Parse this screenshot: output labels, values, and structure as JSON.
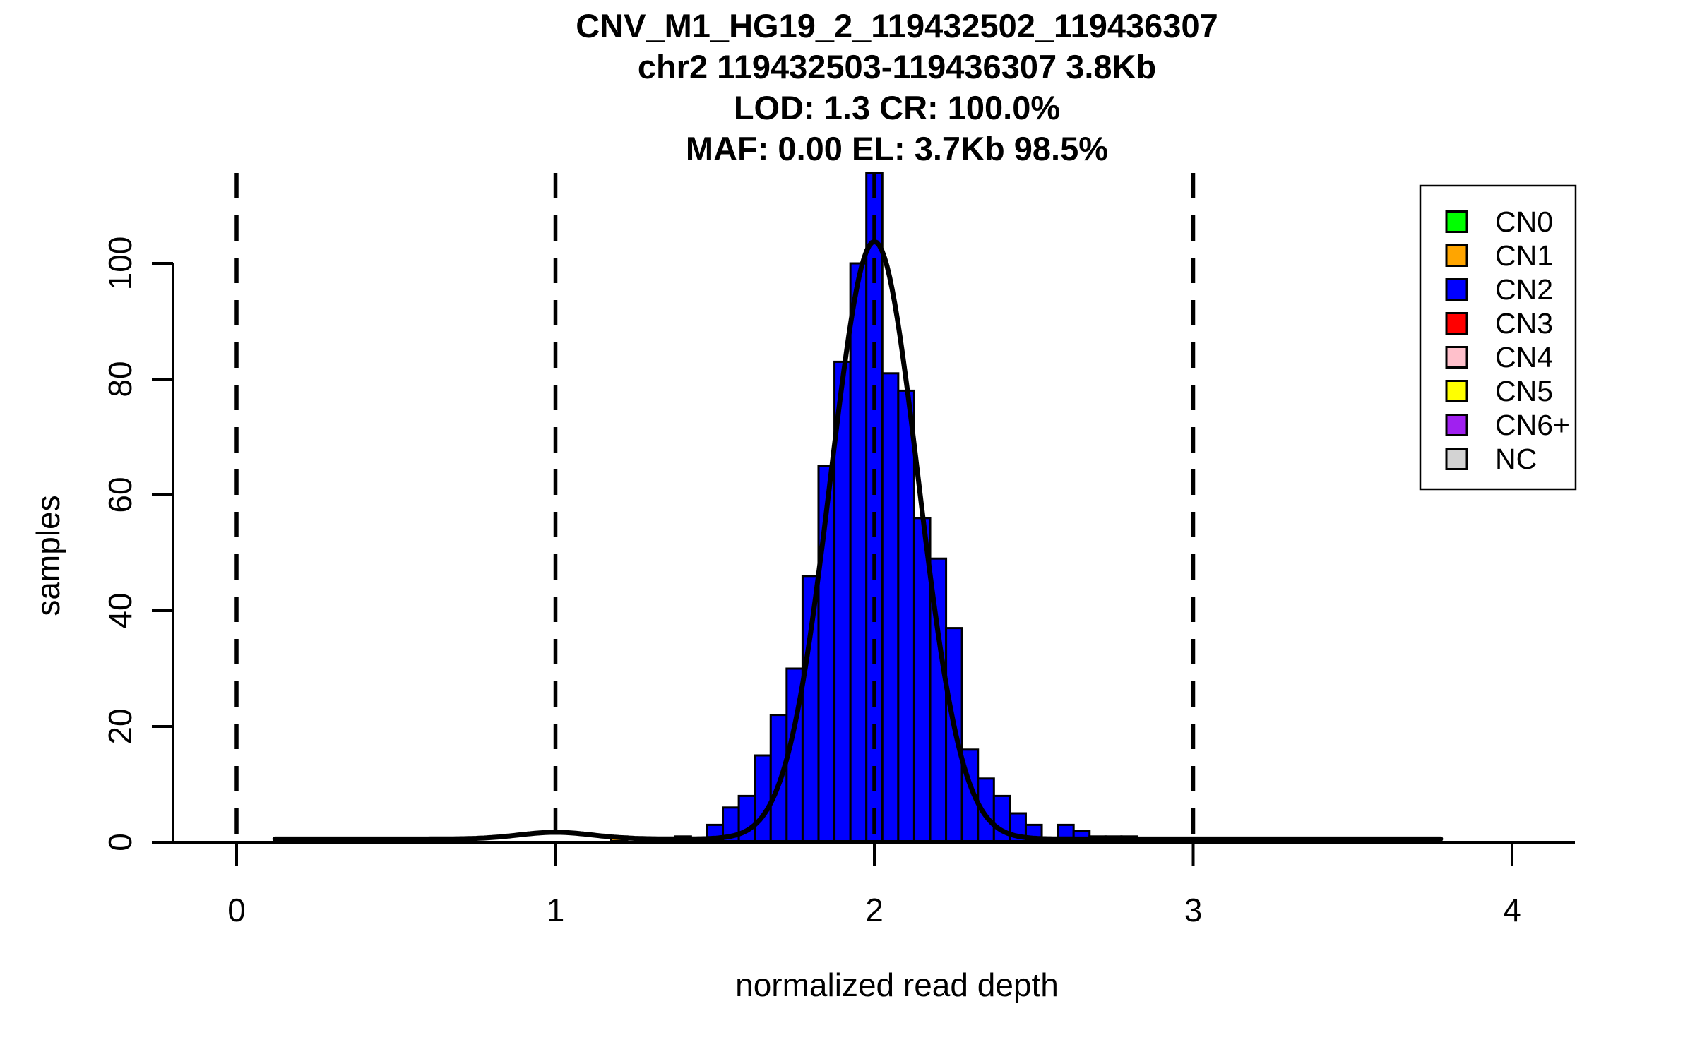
{
  "title": {
    "line1": "CNV_M1_HG19_2_119432502_119436307",
    "line2": "chr2 119432503-119436307 3.8Kb",
    "line3": "LOD: 1.3 CR: 100.0%",
    "line4": "MAF: 0.00 EL: 3.7Kb 98.5%"
  },
  "chart_data": {
    "type": "bar",
    "subtype": "histogram-with-density-fit",
    "title": "CNV_M1_HG19_2_119432502_119436307",
    "subtitle_lines": [
      "chr2 119432503-119436307 3.8Kb",
      "LOD: 1.3 CR: 100.0%",
      "MAF: 0.00 EL: 3.7Kb 98.5%"
    ],
    "xlabel": "normalized read depth",
    "ylabel": "samples",
    "xlim": [
      -0.2,
      4.2
    ],
    "ylim": [
      0,
      115.6
    ],
    "x_ticks": [
      0,
      1,
      2,
      3,
      4
    ],
    "y_ticks": [
      0,
      20,
      40,
      60,
      80,
      100
    ],
    "grid": false,
    "dashed_guide_lines_x": [
      0,
      1,
      2,
      3
    ],
    "bar_default_color": "#0000FF",
    "bar_outline_color": "#000000",
    "bin_width": 0.05,
    "bins": [
      {
        "x0": 1.175,
        "x1": 1.225,
        "count": 1,
        "color": "#FFA500",
        "cn_class": "CN1"
      },
      {
        "x0": 1.375,
        "x1": 1.425,
        "count": 1
      },
      {
        "x0": 1.475,
        "x1": 1.525,
        "count": 3
      },
      {
        "x0": 1.525,
        "x1": 1.575,
        "count": 6
      },
      {
        "x0": 1.575,
        "x1": 1.625,
        "count": 8
      },
      {
        "x0": 1.625,
        "x1": 1.675,
        "count": 15
      },
      {
        "x0": 1.675,
        "x1": 1.725,
        "count": 22
      },
      {
        "x0": 1.725,
        "x1": 1.775,
        "count": 30
      },
      {
        "x0": 1.775,
        "x1": 1.825,
        "count": 46
      },
      {
        "x0": 1.825,
        "x1": 1.875,
        "count": 65
      },
      {
        "x0": 1.875,
        "x1": 1.925,
        "count": 83
      },
      {
        "x0": 1.925,
        "x1": 1.975,
        "count": 100
      },
      {
        "x0": 1.975,
        "x1": 2.025,
        "count": 116,
        "clipped_at_plot_top": true
      },
      {
        "x0": 2.025,
        "x1": 2.075,
        "count": 81
      },
      {
        "x0": 2.075,
        "x1": 2.125,
        "count": 78
      },
      {
        "x0": 2.125,
        "x1": 2.175,
        "count": 56
      },
      {
        "x0": 2.175,
        "x1": 2.225,
        "count": 49
      },
      {
        "x0": 2.225,
        "x1": 2.275,
        "count": 37
      },
      {
        "x0": 2.275,
        "x1": 2.325,
        "count": 16
      },
      {
        "x0": 2.325,
        "x1": 2.375,
        "count": 11
      },
      {
        "x0": 2.375,
        "x1": 2.425,
        "count": 8
      },
      {
        "x0": 2.425,
        "x1": 2.475,
        "count": 5
      },
      {
        "x0": 2.475,
        "x1": 2.525,
        "count": 3
      },
      {
        "x0": 2.575,
        "x1": 2.625,
        "count": 3
      },
      {
        "x0": 2.625,
        "x1": 2.675,
        "count": 2
      },
      {
        "x0": 2.675,
        "x1": 2.725,
        "count": 1
      },
      {
        "x0": 2.725,
        "x1": 2.775,
        "count": 1
      },
      {
        "x0": 2.775,
        "x1": 2.825,
        "count": 1
      }
    ],
    "fit_curve": {
      "color": "#000000",
      "x_start": 0.12,
      "x_end": 3.78,
      "baseline": 0.32,
      "gaussians": [
        {
          "center": 1.0,
          "sigma": 0.115,
          "amplitude": 1.15
        },
        {
          "center": 2.0,
          "sigma": 0.137,
          "amplitude": 103.2
        }
      ]
    },
    "legend": {
      "position": "top-right",
      "entries": [
        {
          "label": "CN0",
          "color": "#00FF00"
        },
        {
          "label": "CN1",
          "color": "#FFA500"
        },
        {
          "label": "CN2",
          "color": "#0000FF"
        },
        {
          "label": "CN3",
          "color": "#FF0000"
        },
        {
          "label": "CN4",
          "color": "#FFC0CB"
        },
        {
          "label": "CN5",
          "color": "#FFFF00"
        },
        {
          "label": "CN6+",
          "color": "#A020F0"
        },
        {
          "label": "NC",
          "color": "#D3D3D3"
        }
      ]
    }
  }
}
